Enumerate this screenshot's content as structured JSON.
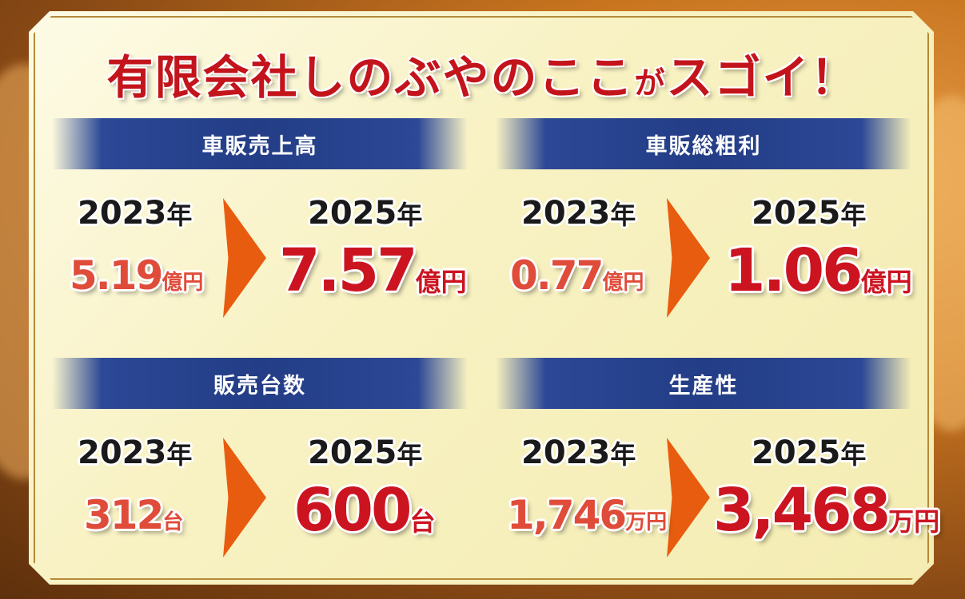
{
  "title": {
    "main": "有限会社しのぶやのここ",
    "ga": "が",
    "tail": "スゴイ！"
  },
  "sections": [
    {
      "header": "車販売上高",
      "year_old": "2023",
      "year_new": "2025",
      "year_unit": "年",
      "old_value": "5.19",
      "old_unit": "億円",
      "new_value": "7.57",
      "new_unit": "億円"
    },
    {
      "header": "車販総粗利",
      "year_old": "2023",
      "year_new": "2025",
      "year_unit": "年",
      "old_value": "0.77",
      "old_unit": "億円",
      "new_value": "1.06",
      "new_unit": "億円"
    },
    {
      "header": "販売台数",
      "year_old": "2023",
      "year_new": "2025",
      "year_unit": "年",
      "old_value": "312",
      "old_unit": "台",
      "new_value": "600",
      "new_unit": "台"
    },
    {
      "header": "生産性",
      "year_old": "2023",
      "year_new": "2025",
      "year_unit": "年",
      "old_value": "1,746",
      "old_unit": "万円",
      "new_value": "3,468",
      "new_unit": "万円"
    }
  ],
  "colors": {
    "header_blue": "#233d86",
    "arrow_orange": "#e85c10",
    "title_red": "#c4141b",
    "new_red": "#cc1421",
    "old_red": "#e04c3a"
  }
}
